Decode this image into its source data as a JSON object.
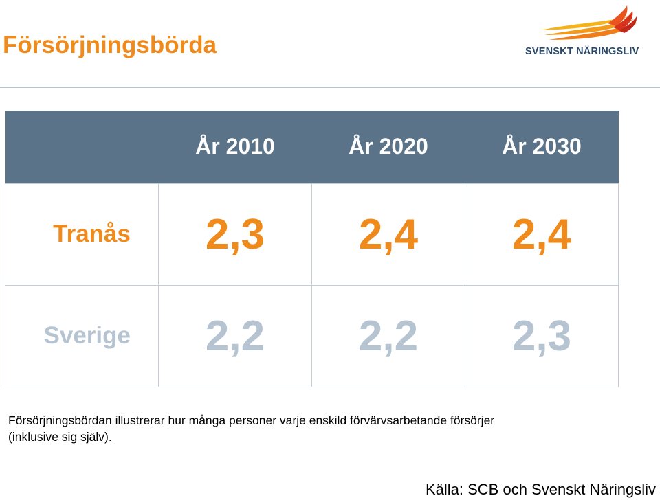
{
  "title": "Försörjningsbörda",
  "logo": {
    "text": "SVENSKT NÄRINGSLIV"
  },
  "table": {
    "columns": [
      "År 2010",
      "År 2020",
      "År 2030"
    ],
    "rows": [
      {
        "label": "Tranås",
        "values": [
          "2,3",
          "2,4",
          "2,4"
        ]
      },
      {
        "label": "Sverige",
        "values": [
          "2,2",
          "2,2",
          "2,3"
        ]
      }
    ]
  },
  "note_line1": "Försörjningsbördan illustrerar hur många personer varje enskild förvärvsarbetande försörjer",
  "note_line2": "(inklusive sig själv).",
  "source": "Källa: SCB och Svenskt Näringsliv",
  "colors": {
    "accent": "#ef8a1c",
    "header": "#5b7389",
    "muted": "#b6c4d1"
  }
}
